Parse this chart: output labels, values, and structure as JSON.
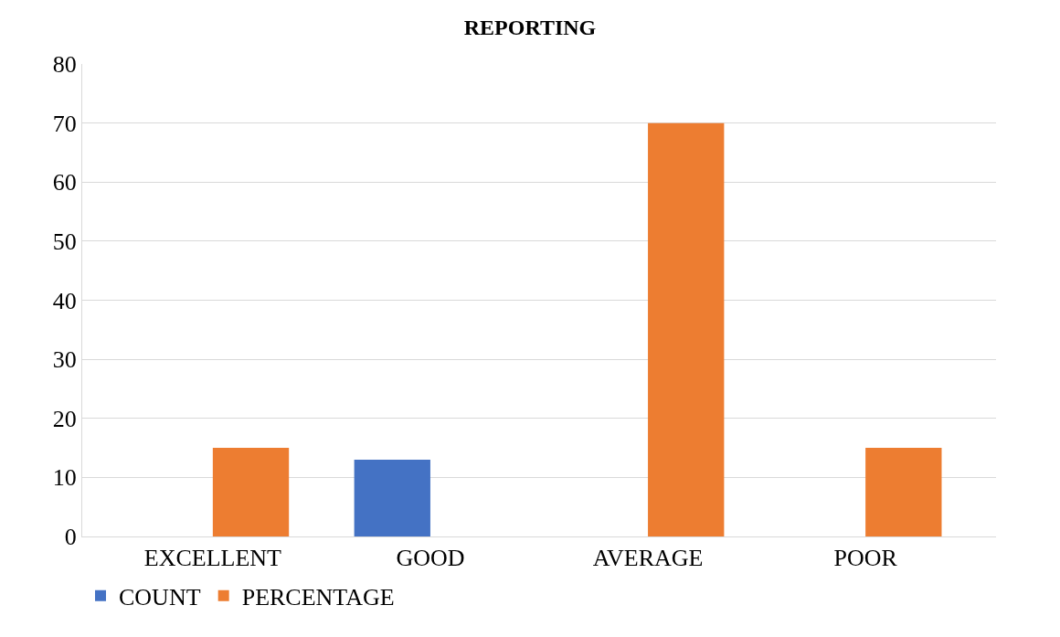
{
  "chart_data": {
    "type": "bar",
    "title": "REPORTING",
    "categories": [
      "EXCELLENT",
      "GOOD",
      "AVERAGE",
      "POOR"
    ],
    "series": [
      {
        "name": "COUNT",
        "color": "#4472c4",
        "values": [
          null,
          13,
          null,
          null
        ]
      },
      {
        "name": "PERCENTAGE",
        "color": "#ed7d31",
        "values": [
          15,
          null,
          70,
          15
        ]
      }
    ],
    "ylim": [
      0,
      80
    ],
    "yticks": [
      0,
      10,
      20,
      30,
      40,
      50,
      60,
      70,
      80
    ],
    "grid": "y",
    "legend": "bottom left"
  }
}
